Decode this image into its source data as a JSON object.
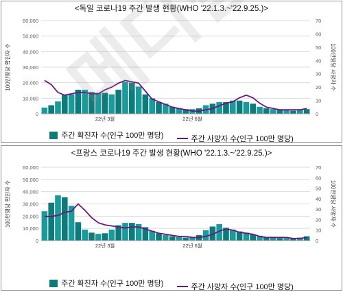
{
  "colors": {
    "bar": "#0f7a7a",
    "bar_light": "#1a9a9a",
    "line": "#6a1580",
    "grid": "#d9d9d9",
    "axis_text": "#595959"
  },
  "legend": {
    "bar_label": "주간 확진자 수(인구 100만 명당)",
    "line_label": "주간 사망자 수(인구 100만 명당)"
  },
  "watermark": "메디칼업데이트",
  "chart_data": [
    {
      "type": "bar",
      "title": "<독일 코로나19 주간 발생 현황(WHO '22.1.3.~'22.9.25.)>",
      "ylabel": "100만명당 확진자 수",
      "y2label": "100만명당 사망자 수",
      "ylim": [
        0,
        60000
      ],
      "y2lim": [
        0,
        70
      ],
      "yticks": [
        "0",
        "10,000",
        "20,000",
        "30,000",
        "40,000",
        "50,000",
        "60,000"
      ],
      "y2ticks": [
        "0",
        "10",
        "20",
        "30",
        "40",
        "50",
        "60",
        "70"
      ],
      "x_tick_labels": [
        {
          "label": "22년 3월",
          "index": 9
        },
        {
          "label": "22년 6월",
          "index": 22
        }
      ],
      "grid": true,
      "series": [
        {
          "kind": "bar",
          "values": [
            4000,
            5500,
            8000,
            12000,
            12500,
            15500,
            15500,
            14000,
            13500,
            13500,
            12500,
            15500,
            20500,
            20000,
            17500,
            12500,
            10000,
            7500,
            6500,
            4500,
            3500,
            3000,
            3000,
            3500,
            5500,
            6500,
            7500,
            7500,
            8500,
            8500,
            7500,
            6500,
            4500,
            3500,
            3000,
            2500,
            2500,
            2000,
            2500,
            3000
          ]
        },
        {
          "kind": "line",
          "axis": "y2",
          "values": [
            25,
            22,
            16,
            14,
            15,
            16,
            16,
            15,
            15,
            18,
            20,
            23,
            25,
            24,
            23,
            17,
            11,
            9,
            7,
            5,
            4,
            3,
            2,
            2,
            3,
            4,
            6,
            8,
            9,
            12,
            14,
            12,
            8,
            5,
            4,
            3,
            3,
            3,
            3,
            4
          ]
        }
      ]
    },
    {
      "type": "bar",
      "title": "<프랑스 코로나19 주간 발생 현황(WHO '22.1.3.~'22.9.25.)>",
      "ylabel": "100만명당 확진자 수",
      "y2label": "100만명당 사망자 수",
      "ylim": [
        0,
        60000
      ],
      "y2lim": [
        0,
        70
      ],
      "yticks": [
        "0",
        "10,000",
        "20,000",
        "30,000",
        "40,000",
        "50,000",
        "60,000"
      ],
      "y2ticks": [
        "0",
        "10",
        "20",
        "30",
        "40",
        "50",
        "60",
        "70"
      ],
      "x_tick_labels": [
        {
          "label": "22년 3월",
          "index": 9
        },
        {
          "label": "22년 6월",
          "index": 22
        }
      ],
      "grid": true,
      "series": [
        {
          "kind": "bar",
          "values": [
            24000,
            31000,
            37000,
            35500,
            28500,
            15000,
            9000,
            6500,
            5500,
            6000,
            9000,
            12500,
            14500,
            14500,
            13500,
            11000,
            8000,
            6000,
            4500,
            3500,
            3000,
            2500,
            2500,
            4500,
            8500,
            11500,
            13500,
            10500,
            9000,
            7500,
            6500,
            5000,
            4000,
            3000,
            2500,
            2000,
            2000,
            2000,
            2500,
            3500
          ]
        },
        {
          "kind": "line",
          "axis": "y2",
          "values": [
            23,
            23,
            24,
            27,
            28,
            35,
            29,
            22,
            17,
            15,
            14,
            13,
            12,
            13,
            13,
            11,
            9,
            7,
            6,
            5,
            4,
            4,
            3,
            3,
            4,
            6,
            9,
            11,
            10,
            8,
            7,
            6,
            4,
            3,
            3,
            3,
            3,
            2,
            2,
            3
          ]
        }
      ]
    }
  ]
}
